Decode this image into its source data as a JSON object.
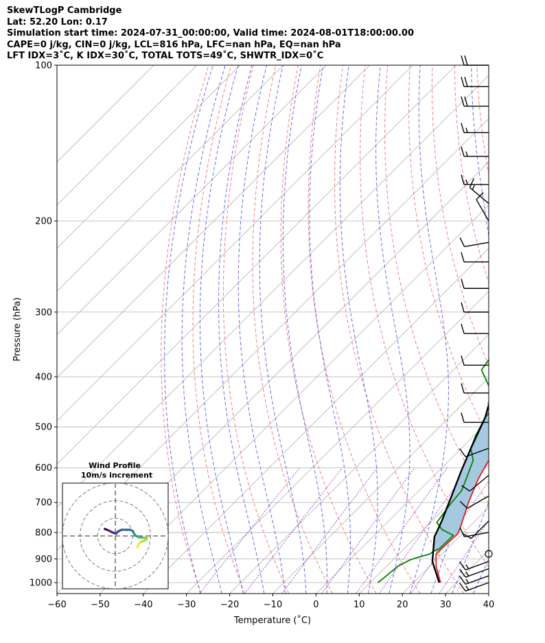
{
  "header": {
    "line1": "SkewTLogP Cambridge",
    "line2": "Lat: 52.20   Lon: 0.17",
    "line3": "Simulation start time: 2024-07-31_00:00:00, Valid time: 2024-08-01T18:00:00.00",
    "line4": "CAPE=0 j/kg, CIN=0 j/kg, LCL=816 hPa, LFC=nan hPa, EQ=nan hPa",
    "line5": "LFT IDX=3˚C, K IDX=30˚C, TOTAL TOTS=49˚C, SHWTR_IDX=0˚C"
  },
  "chart_data": {
    "type": "line",
    "xlabel": "Temperature (˚C)",
    "ylabel": "Pressure (hPa)",
    "xlim": [
      -60,
      40
    ],
    "ylim": [
      1050,
      100
    ],
    "yscale": "log",
    "grid": true,
    "x_ticks": [
      -60,
      -50,
      -40,
      -30,
      -20,
      -10,
      0,
      10,
      20,
      30,
      40
    ],
    "x_tick_labels": [
      "−60",
      "−50",
      "−40",
      "−30",
      "−20",
      "−10",
      "0",
      "10",
      "20",
      "30",
      "40"
    ],
    "y_ticks": [
      1000,
      900,
      800,
      700,
      600,
      500,
      400,
      300,
      200,
      100
    ],
    "y_tick_labels": [
      "1000",
      "900",
      "800",
      "700",
      "600",
      "500",
      "400",
      "300",
      "200",
      "100"
    ],
    "colors": {
      "temperature": "#e41a1c",
      "dewpoint": "#008000",
      "parcel": "#000000",
      "cape_fill": "#a6c8e0",
      "dry_adiabats": "#f08080",
      "moist_adiabats": "#6a6aee",
      "mixing_ratio": "#9a4ad0",
      "isotherms": "#b0b0b0"
    },
    "series": [
      {
        "key": "temperature",
        "points": [
          [
            26.3,
            1000
          ],
          [
            21.5,
            930
          ],
          [
            18.6,
            880
          ],
          [
            18.8,
            840
          ],
          [
            19.0,
            805
          ],
          [
            18.0,
            780
          ],
          [
            14.2,
            700
          ],
          [
            11.0,
            630
          ],
          [
            9.5,
            590
          ],
          [
            7.0,
            520
          ],
          [
            5.8,
            480
          ],
          [
            4.5,
            440
          ],
          [
            2.0,
            400
          ],
          [
            -1.0,
            360
          ],
          [
            -3.5,
            330
          ],
          [
            -5.0,
            310
          ],
          [
            -6.7,
            280
          ],
          [
            -7.8,
            260
          ],
          [
            -8.7,
            240
          ],
          [
            -9.3,
            225
          ],
          [
            -8.9,
            210
          ],
          [
            -6.8,
            200
          ],
          [
            -2.5,
            185
          ],
          [
            -0.5,
            178
          ],
          [
            1.2,
            170
          ],
          [
            -0.8,
            150
          ],
          [
            0.6,
            135
          ],
          [
            2.3,
            122
          ],
          [
            4.8,
            113
          ],
          [
            7.5,
            105
          ],
          [
            8.9,
            100
          ]
        ]
      },
      {
        "key": "dewpoint",
        "points": [
          [
            11.8,
            1000
          ],
          [
            12.3,
            960
          ],
          [
            12.6,
            930
          ],
          [
            13.9,
            905
          ],
          [
            15.0,
            895
          ],
          [
            17.2,
            880
          ],
          [
            17.4,
            870
          ],
          [
            18.2,
            860
          ],
          [
            18.3,
            810
          ],
          [
            14.4,
            790
          ],
          [
            11.5,
            765
          ],
          [
            10.3,
            700
          ],
          [
            9.9,
            665
          ],
          [
            8.2,
            630
          ],
          [
            5.5,
            580
          ],
          [
            2.2,
            550
          ],
          [
            0.4,
            520
          ],
          [
            -1.6,
            480
          ],
          [
            -2.0,
            455
          ],
          [
            -3.0,
            440
          ],
          [
            -7.5,
            420
          ],
          [
            -13.5,
            388
          ],
          [
            -14.2,
            370
          ],
          [
            -13.4,
            355
          ],
          [
            -14.8,
            340
          ],
          [
            -16.6,
            310
          ],
          [
            -19.2,
            290
          ],
          [
            -21.2,
            265
          ],
          [
            -22.4,
            250
          ],
          [
            -22.6,
            240
          ],
          [
            -22.9,
            225
          ],
          [
            -24.0,
            210
          ],
          [
            -25.7,
            200
          ],
          [
            -28.5,
            190
          ],
          [
            -33.0,
            180
          ],
          [
            -36.0,
            170
          ],
          [
            -38.0,
            163
          ],
          [
            -36.8,
            150
          ],
          [
            -33.6,
            135
          ],
          [
            -30.0,
            120
          ],
          [
            -26.8,
            105
          ],
          [
            -25.5,
            100
          ]
        ]
      },
      {
        "key": "parcel",
        "points": [
          [
            26.0,
            1000
          ],
          [
            19.5,
            910
          ],
          [
            14.3,
            816
          ],
          [
            12.3,
            760
          ],
          [
            9.7,
            700
          ],
          [
            5.3,
            610
          ],
          [
            2.2,
            550
          ],
          [
            -1.6,
            480
          ],
          [
            -6.5,
            420
          ],
          [
            -12.0,
            360
          ],
          [
            -17.2,
            310
          ],
          [
            -22.0,
            270
          ],
          [
            -26.5,
            240
          ],
          [
            -31.7,
            210
          ],
          [
            -35.5,
            190
          ],
          [
            -41.0,
            165
          ],
          [
            -47.0,
            140
          ],
          [
            -51.5,
            125
          ],
          [
            -56.5,
            110
          ],
          [
            -59.5,
            100
          ]
        ]
      }
    ],
    "wind_barbs": {
      "pressures": [
        1000,
        970,
        940,
        910,
        880,
        800,
        760,
        680,
        620,
        550,
        490,
        430,
        380,
        330,
        300,
        270,
        240,
        220,
        200,
        185,
        170,
        150,
        135,
        120,
        110,
        100
      ],
      "speed_kt": [
        15,
        15,
        15,
        15,
        0,
        10,
        10,
        10,
        10,
        10,
        10,
        10,
        10,
        10,
        10,
        10,
        10,
        10,
        10,
        15,
        15,
        15,
        15,
        20,
        20,
        20
      ],
      "direction_deg": [
        250,
        250,
        250,
        250,
        0,
        260,
        225,
        240,
        230,
        250,
        270,
        270,
        270,
        270,
        270,
        270,
        270,
        260,
        330,
        310,
        270,
        270,
        270,
        270,
        270,
        270
      ]
    },
    "hodograph": {
      "title": "Wind Profile",
      "subtitle": "10m/s increment",
      "rings_ms": [
        10,
        20,
        30
      ],
      "limit_ms": 30,
      "points_uv": [
        [
          -6,
          4
        ],
        [
          -4,
          3.2
        ],
        [
          -2,
          2.2
        ],
        [
          0.4,
          1.2
        ],
        [
          1.5,
          2.5
        ],
        [
          3.5,
          3.5
        ],
        [
          6,
          3.5
        ],
        [
          8.5,
          3.5
        ],
        [
          10,
          2.8
        ],
        [
          10.5,
          1.5
        ],
        [
          11.5,
          0.2
        ],
        [
          13,
          -0.6
        ],
        [
          14,
          -0.8
        ],
        [
          16,
          -1
        ],
        [
          17.8,
          -1.2
        ],
        [
          17.5,
          -2.3
        ],
        [
          15.5,
          -3
        ],
        [
          14,
          -3.8
        ],
        [
          13,
          -5
        ],
        [
          12.5,
          -6.4
        ]
      ]
    }
  }
}
